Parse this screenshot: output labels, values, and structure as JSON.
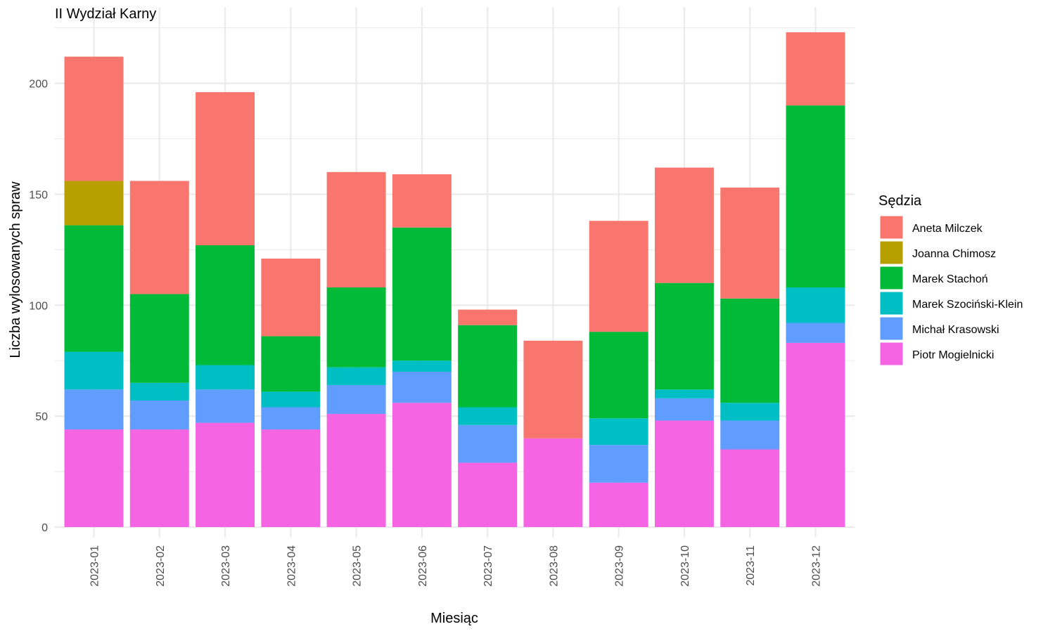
{
  "chart_data": {
    "type": "bar",
    "stacked": true,
    "title": "II Wydział Karny",
    "xlabel": "Miesiąc",
    "ylabel": "Liczba wylosowanych spraw",
    "ylim": [
      0,
      225
    ],
    "y_ticks": [
      0,
      50,
      100,
      150,
      200
    ],
    "grid": true,
    "legend": {
      "title": "Sędzia",
      "position": "right"
    },
    "categories": [
      "2023-01",
      "2023-02",
      "2023-03",
      "2023-04",
      "2023-05",
      "2023-06",
      "2023-07",
      "2023-08",
      "2023-09",
      "2023-10",
      "2023-11",
      "2023-12"
    ],
    "series": [
      {
        "name": "Aneta Milczek",
        "color": "#F8766D",
        "values": [
          56,
          51,
          69,
          35,
          52,
          24,
          7,
          44,
          50,
          52,
          50,
          33
        ]
      },
      {
        "name": "Joanna Chimosz",
        "color": "#B79F00",
        "values": [
          20,
          0,
          0,
          0,
          0,
          0,
          0,
          0,
          0,
          0,
          0,
          0
        ]
      },
      {
        "name": "Marek Stachoń",
        "color": "#00BA38",
        "values": [
          57,
          40,
          54,
          25,
          36,
          60,
          37,
          0,
          39,
          48,
          47,
          82
        ]
      },
      {
        "name": "Marek Szociński-Klein",
        "color": "#00BFC4",
        "values": [
          17,
          8,
          11,
          7,
          8,
          5,
          8,
          0,
          12,
          4,
          8,
          16
        ]
      },
      {
        "name": "Michał Krasowski",
        "color": "#619CFF",
        "values": [
          18,
          13,
          15,
          10,
          13,
          14,
          17,
          0,
          17,
          10,
          13,
          9
        ]
      },
      {
        "name": "Piotr Mogielnicki",
        "color": "#F564E3",
        "values": [
          44,
          44,
          47,
          44,
          51,
          56,
          29,
          40,
          20,
          48,
          35,
          83
        ]
      }
    ]
  }
}
